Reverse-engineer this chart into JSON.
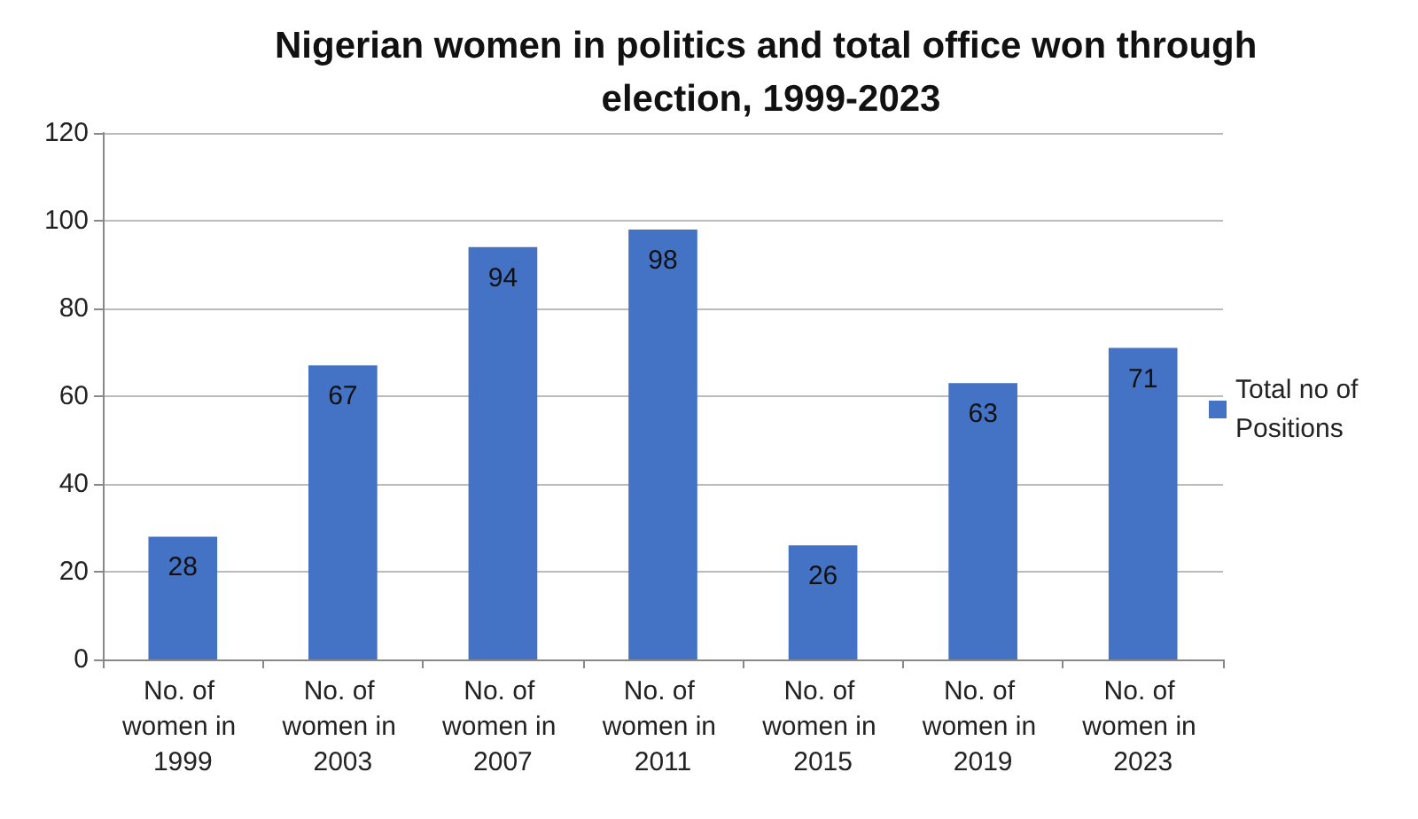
{
  "chart_data": {
    "type": "bar",
    "title": "Nigerian women in politics and total office won through election, 1999-2023",
    "categories": [
      "No. of women in 1999",
      "No. of women in 2003",
      "No. of women in 2007",
      "No. of women in 2011",
      "No. of women in 2015",
      "No. of women in 2019",
      "No. of women in 2023"
    ],
    "series": [
      {
        "name": "Total no of Positions",
        "color": "#4472c4",
        "values": [
          28,
          67,
          94,
          98,
          26,
          63,
          71
        ]
      }
    ],
    "ylim": [
      0,
      120
    ],
    "yticks": [
      0,
      20,
      40,
      60,
      80,
      100,
      120
    ],
    "grid": "y",
    "legend": "right",
    "data_labels": true
  }
}
